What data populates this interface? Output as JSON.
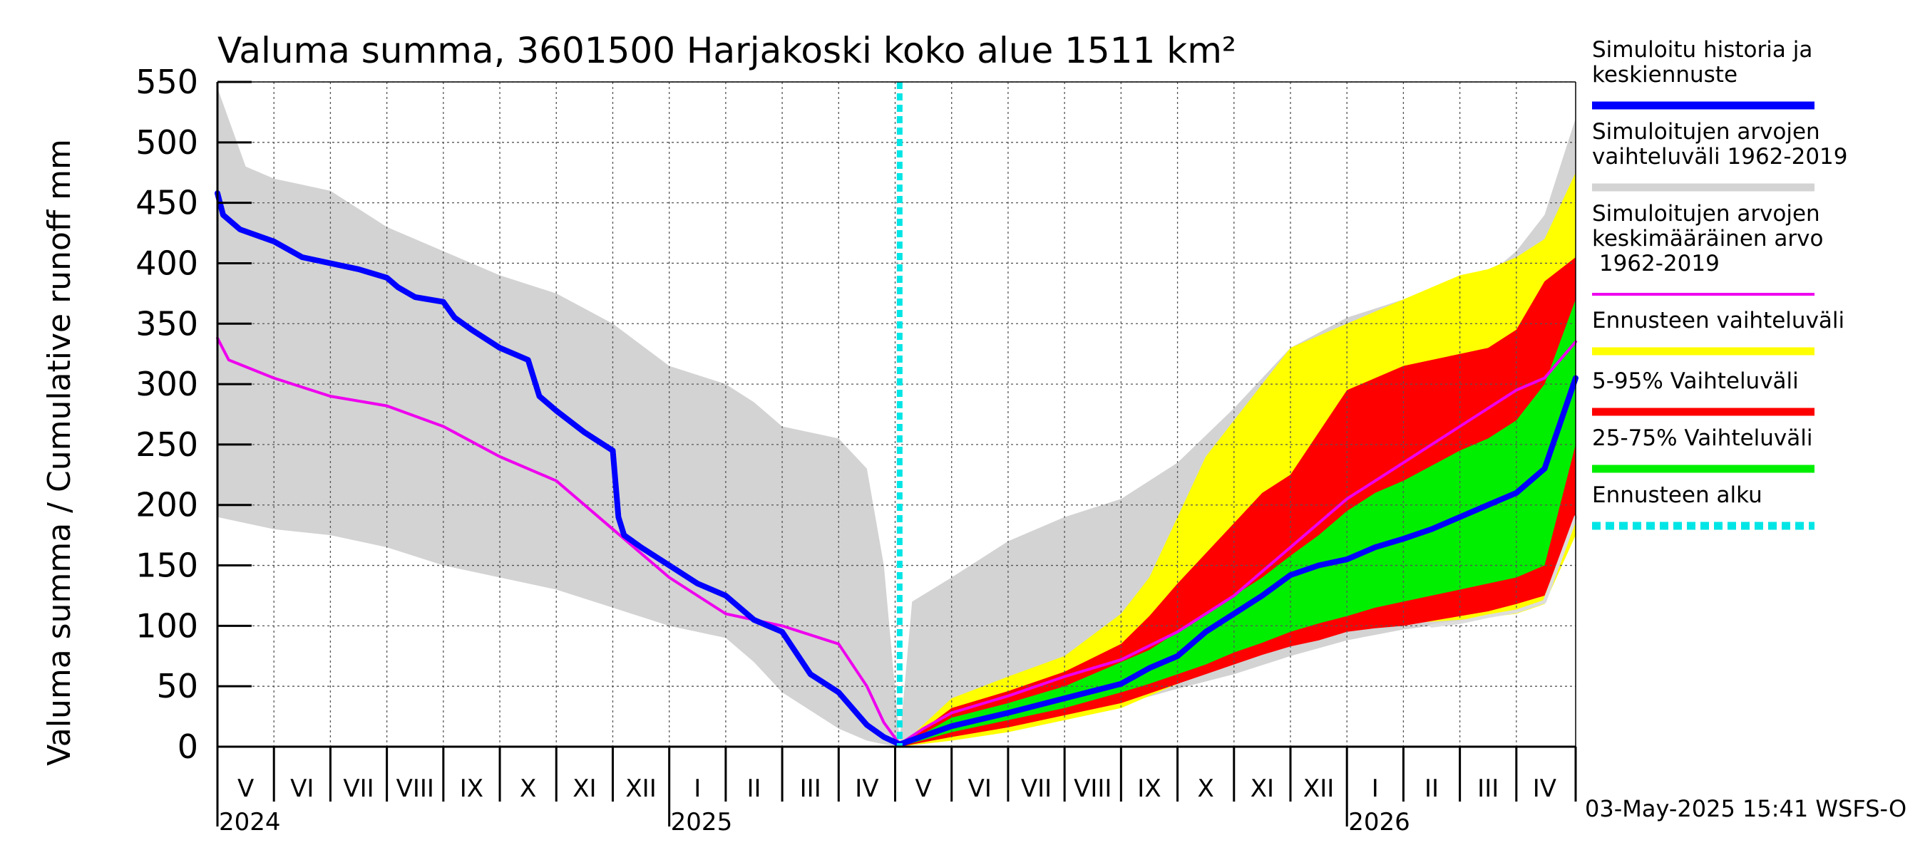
{
  "chart_data": {
    "type": "area",
    "title": "Valuma summa, 3601500 Harjakoski koko alue 1511 km²",
    "ylabel": "Valuma summa / Cumulative runoff    mm",
    "xlabel": "",
    "ylim": [
      0,
      550
    ],
    "yticks": [
      0,
      50,
      100,
      150,
      200,
      250,
      300,
      350,
      400,
      450,
      500,
      550
    ],
    "xlim": [
      0,
      24.05
    ],
    "month_labels": [
      {
        "label": "V",
        "mid": 0.5
      },
      {
        "label": "VI",
        "mid": 1.5
      },
      {
        "label": "VII",
        "mid": 2.5
      },
      {
        "label": "VIII",
        "mid": 3.5
      },
      {
        "label": "IX",
        "mid": 4.5
      },
      {
        "label": "X",
        "mid": 5.5
      },
      {
        "label": "XI",
        "mid": 6.5
      },
      {
        "label": "XII",
        "mid": 7.5
      },
      {
        "label": "I",
        "mid": 8.5
      },
      {
        "label": "II",
        "mid": 9.5
      },
      {
        "label": "III",
        "mid": 10.5
      },
      {
        "label": "IV",
        "mid": 11.5
      },
      {
        "label": "V",
        "mid": 12.5
      },
      {
        "label": "VI",
        "mid": 13.5
      },
      {
        "label": "VII",
        "mid": 14.5
      },
      {
        "label": "VIII",
        "mid": 15.5
      },
      {
        "label": "IX",
        "mid": 16.5
      },
      {
        "label": "X",
        "mid": 17.5
      },
      {
        "label": "XI",
        "mid": 18.5
      },
      {
        "label": "XII",
        "mid": 19.5
      },
      {
        "label": "I",
        "mid": 20.5
      },
      {
        "label": "II",
        "mid": 21.5
      },
      {
        "label": "III",
        "mid": 22.5
      },
      {
        "label": "IV",
        "mid": 23.5
      }
    ],
    "year_labels": [
      {
        "label": "2024",
        "at": 0
      },
      {
        "label": "2025",
        "at": 8
      },
      {
        "label": "2026",
        "at": 20
      }
    ],
    "forecast_start": 12.08,
    "series": [
      {
        "name": "Simuloitujen arvojen vaihteluväli 1962-2019",
        "kind": "band",
        "color": "#d3d3d3",
        "x": [
          0,
          0.5,
          1,
          2,
          3,
          4,
          5,
          6,
          7,
          8,
          9,
          9.5,
          10,
          11,
          11.5,
          11.8,
          12.08,
          12.3,
          13,
          14,
          15,
          16,
          17,
          18,
          19,
          20,
          21,
          22,
          22.5,
          23,
          23.5,
          24.05
        ],
        "upper": [
          545,
          480,
          470,
          460,
          430,
          410,
          390,
          375,
          350,
          315,
          300,
          285,
          265,
          255,
          230,
          150,
          5,
          120,
          140,
          170,
          190,
          205,
          235,
          280,
          330,
          355,
          370,
          385,
          390,
          410,
          440,
          520
        ],
        "lower": [
          190,
          185,
          180,
          175,
          165,
          150,
          140,
          130,
          115,
          100,
          90,
          70,
          45,
          15,
          5,
          2,
          0,
          2,
          8,
          15,
          25,
          35,
          48,
          60,
          75,
          88,
          97,
          103,
          108,
          115,
          125,
          180
        ]
      },
      {
        "name": "Ennusteen vaihteluväli",
        "kind": "band",
        "color": "#ffff00",
        "x": [
          12.08,
          13,
          14,
          15,
          16,
          16.5,
          17,
          17.5,
          18,
          18.5,
          19,
          20,
          21,
          22,
          22.5,
          23,
          23.5,
          24.05
        ],
        "upper": [
          0,
          40,
          58,
          75,
          110,
          140,
          190,
          240,
          270,
          300,
          330,
          350,
          370,
          390,
          395,
          405,
          420,
          475
        ],
        "lower": [
          0,
          5,
          12,
          22,
          32,
          42,
          52,
          62,
          70,
          80,
          88,
          97,
          102,
          105,
          107,
          110,
          118,
          175
        ]
      },
      {
        "name": "5-95% Vaihteluväli",
        "kind": "band",
        "color": "#ff0000",
        "x": [
          12.08,
          13,
          14,
          15,
          16,
          16.5,
          17,
          17.5,
          18,
          18.5,
          19,
          19.5,
          20,
          20.5,
          21,
          22,
          22.5,
          23,
          23.5,
          24.05
        ],
        "upper": [
          0,
          32,
          46,
          62,
          85,
          108,
          135,
          160,
          185,
          210,
          225,
          260,
          295,
          305,
          315,
          325,
          330,
          345,
          385,
          405
        ],
        "lower": [
          0,
          8,
          16,
          26,
          36,
          44,
          52,
          60,
          68,
          76,
          83,
          88,
          95,
          98,
          100,
          108,
          112,
          118,
          125,
          190
        ]
      },
      {
        "name": "25-75% Vaihteluväli",
        "kind": "band",
        "color": "#00ee00",
        "x": [
          12.08,
          13,
          14,
          15,
          16,
          16.5,
          17,
          17.5,
          18,
          18.5,
          19,
          19.5,
          20,
          20.5,
          21,
          22,
          22.5,
          23,
          23.5,
          24.05
        ],
        "upper": [
          0,
          24,
          36,
          50,
          70,
          80,
          95,
          110,
          125,
          140,
          158,
          175,
          195,
          210,
          220,
          245,
          255,
          270,
          300,
          370
        ],
        "lower": [
          0,
          12,
          22,
          32,
          45,
          52,
          60,
          68,
          78,
          86,
          95,
          102,
          108,
          115,
          120,
          130,
          135,
          140,
          150,
          250
        ]
      },
      {
        "name": "Simuloitujen arvojen keskimääräinen arvo 1962-2019",
        "kind": "line",
        "color": "#ee00ee",
        "width": 4,
        "x": [
          0,
          0.2,
          1,
          2,
          3,
          4,
          5,
          6,
          7,
          7.5,
          8,
          8.5,
          9,
          10,
          11,
          11.5,
          11.8,
          12.08,
          12.5,
          13,
          14,
          15,
          16,
          17,
          18,
          19,
          20,
          21,
          22,
          23,
          23.5,
          24.05
        ],
        "values": [
          338,
          320,
          305,
          290,
          282,
          265,
          240,
          220,
          180,
          160,
          140,
          125,
          110,
          100,
          85,
          50,
          20,
          2,
          15,
          28,
          42,
          58,
          72,
          95,
          125,
          165,
          205,
          235,
          265,
          295,
          305,
          335
        ]
      },
      {
        "name": "Forecast lower trace",
        "kind": "line",
        "color": "#dddddd",
        "width": 5,
        "legend": false,
        "x": [
          21.5,
          22,
          22.5,
          23,
          23.5,
          24.05
        ],
        "values": [
          100,
          103,
          108,
          112,
          120,
          190
        ]
      },
      {
        "name": "Simuloitu historia ja keskiennuste",
        "kind": "line",
        "color": "#0000ff",
        "width": 8,
        "x": [
          0,
          0.1,
          0.4,
          1,
          1.5,
          2,
          2.5,
          3,
          3.2,
          3.5,
          4,
          4.2,
          4.5,
          5,
          5.5,
          5.7,
          6,
          6.5,
          7,
          7.1,
          7.2,
          7.5,
          8,
          8.5,
          9,
          9.5,
          10,
          10.5,
          11,
          11.5,
          11.8,
          12.08,
          13,
          14,
          15,
          16,
          16.5,
          17,
          17.5,
          18,
          18.5,
          19,
          19.5,
          20,
          20.5,
          21,
          21.5,
          22,
          22.5,
          23,
          23.5,
          24.05
        ],
        "values": [
          458,
          440,
          428,
          418,
          405,
          400,
          395,
          388,
          380,
          372,
          368,
          355,
          345,
          330,
          320,
          290,
          278,
          260,
          245,
          190,
          175,
          165,
          150,
          135,
          125,
          105,
          95,
          60,
          45,
          18,
          8,
          2,
          17,
          28,
          40,
          52,
          65,
          75,
          95,
          110,
          125,
          142,
          150,
          155,
          165,
          172,
          180,
          190,
          200,
          210,
          230,
          305
        ]
      },
      {
        "name": "Ennusteen alku",
        "kind": "vline",
        "color": "#00e5e5",
        "width": 8,
        "x": 12.08
      }
    ],
    "legend": [
      {
        "label": "Simuloitu historia ja keskiennuste",
        "color": "#0000ff"
      },
      {
        "label": "Simuloitujen arvojen vaihteluväli 1962-2019",
        "color": "#d3d3d3"
      },
      {
        "label": "Simuloitujen arvojen keskimääräinen arvo 1962-2019",
        "color": "#ee00ee"
      },
      {
        "label": "Ennusteen vaihteluväli",
        "color": "#ffff00"
      },
      {
        "label": "5-95% Vaihteluväli",
        "color": "#ff0000"
      },
      {
        "label": "25-75% Vaihteluväli",
        "color": "#00ee00"
      },
      {
        "label": "Ennusteen alku",
        "color": "#00e5e5"
      }
    ],
    "legend_lines": [
      [
        "Simuloitu historia ja",
        "keskiennuste"
      ],
      [
        "Simuloitujen arvojen",
        "vaihteluväli 1962-2019"
      ],
      [
        "Simuloitujen arvojen",
        "keskimääräinen arvo",
        "   1962-2019"
      ],
      [
        "Ennusteen vaihteluväli"
      ],
      [
        "5-95% Vaihteluväli"
      ],
      [
        "25-75% Vaihteluväli"
      ],
      [
        "Ennusteen alku"
      ]
    ],
    "legend_position": "right",
    "grid": true
  },
  "footer": {
    "timestamp": "03-May-2025 15:41 WSFS-O"
  }
}
